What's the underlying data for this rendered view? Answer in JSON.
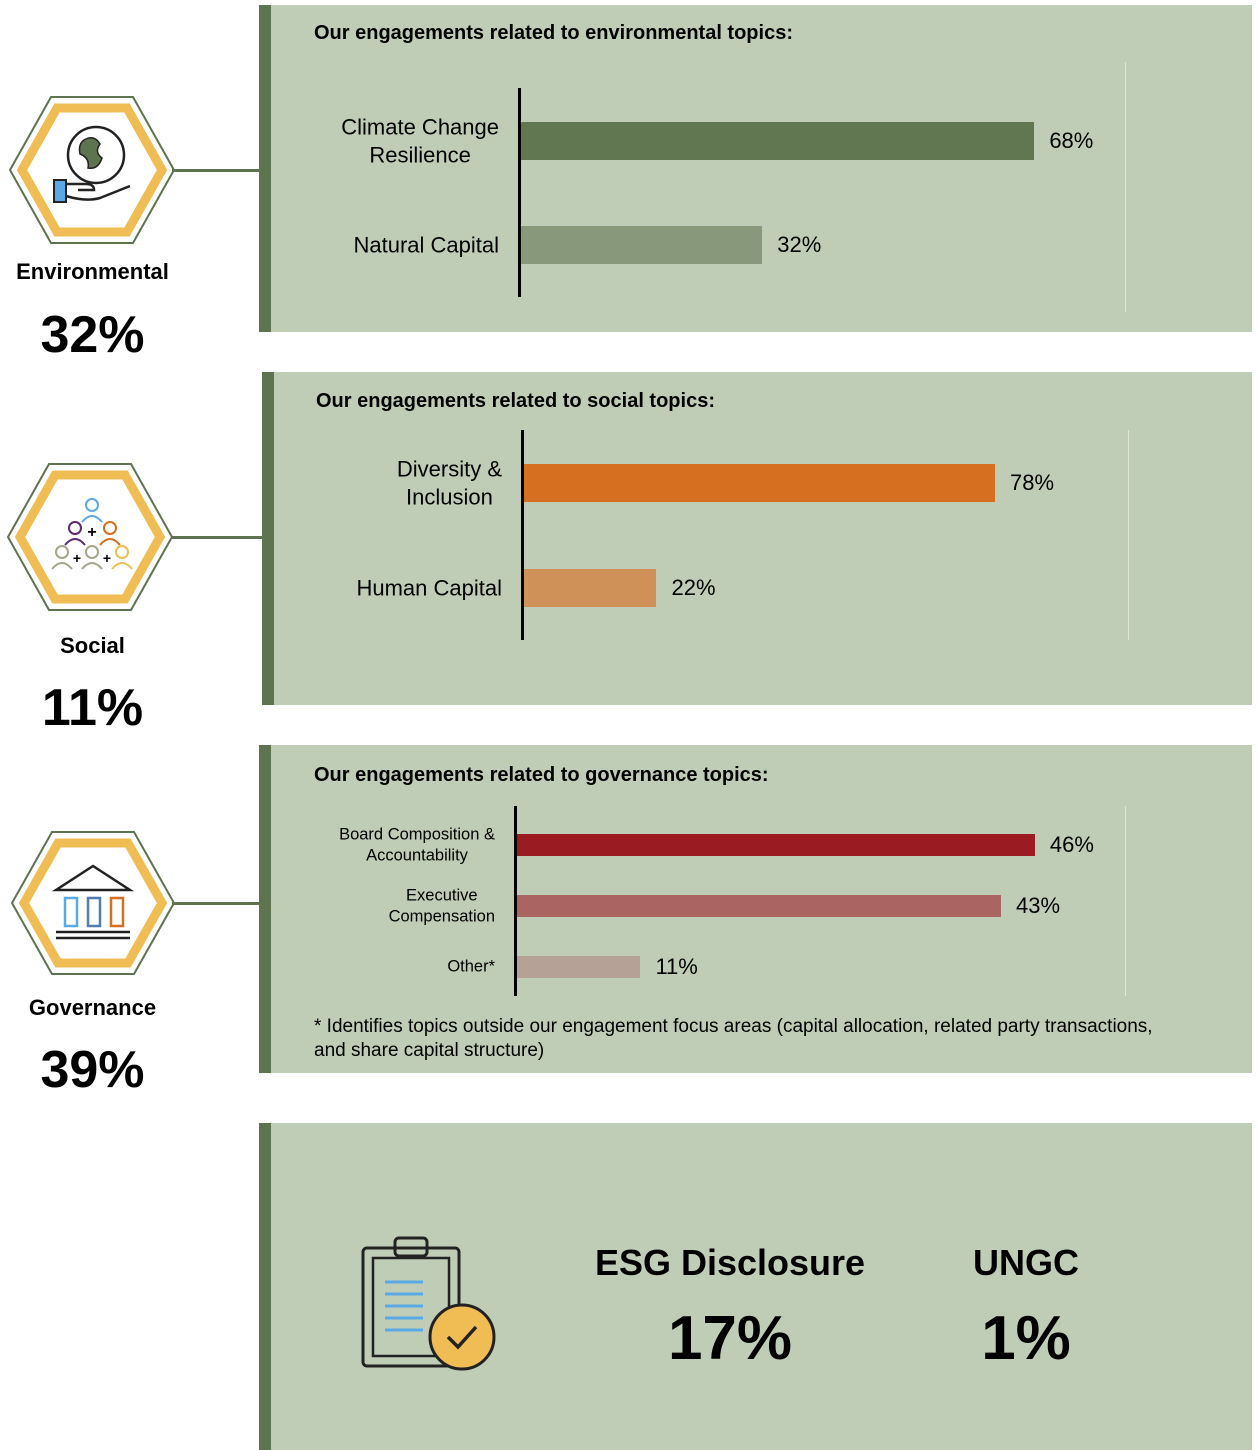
{
  "pillars": [
    {
      "label": "Environmental",
      "share": "32%"
    },
    {
      "label": "Social",
      "share": "11%"
    },
    {
      "label": "Governance",
      "share": "39%"
    }
  ],
  "chart_data": [
    {
      "type": "bar",
      "orientation": "horizontal",
      "title": "Our engagements related to environmental topics:",
      "categories": [
        "Climate Change\nResilience",
        "Natural Capital"
      ],
      "values": [
        68,
        32
      ],
      "value_labels": [
        "68%",
        "32%"
      ],
      "colors": [
        "#617752",
        "#87997a"
      ],
      "xlim": [
        0,
        80
      ]
    },
    {
      "type": "bar",
      "orientation": "horizontal",
      "title": "Our engagements related to social topics:",
      "categories": [
        "Diversity &\nInclusion",
        "Human Capital"
      ],
      "values": [
        78,
        22
      ],
      "value_labels": [
        "78%",
        "22%"
      ],
      "colors": [
        "#d76f20",
        "#d09159"
      ],
      "xlim": [
        0,
        100
      ]
    },
    {
      "type": "bar",
      "orientation": "horizontal",
      "title": "Our engagements related to governance topics:",
      "categories": [
        "Board Composition &\nAccountability",
        "Executive\nCompensation",
        "Other*"
      ],
      "values": [
        46,
        43,
        11
      ],
      "value_labels": [
        "46%",
        "43%",
        "11%"
      ],
      "colors": [
        "#9a1c22",
        "#aa6461",
        "#b5a195"
      ],
      "xlim": [
        0,
        54
      ],
      "note": "* Identifies topics outside our engagement focus areas (capital allocation, related party transactions, and share capital structure)"
    }
  ],
  "metrics": [
    {
      "label": "ESG Disclosure",
      "value": "17%"
    },
    {
      "label": "UNGC",
      "value": "1%"
    }
  ]
}
